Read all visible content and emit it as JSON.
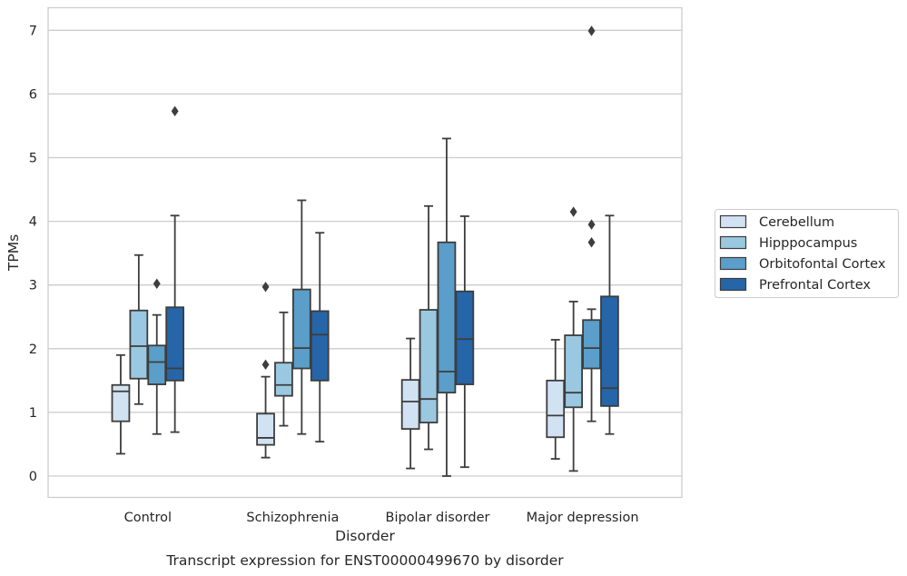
{
  "chart_data": {
    "type": "box",
    "title": "",
    "caption": "Transcript expression for ENST00000499670 by disorder",
    "xlabel": "Disorder",
    "ylabel": "TPMs",
    "ylim": [
      -0.33,
      7.35
    ],
    "yticks": [
      "0",
      "1",
      "2",
      "3",
      "4",
      "5",
      "6",
      "7"
    ],
    "grid": "horizontal",
    "legend_position": "right",
    "categories": [
      "Control",
      "Schizophrenia",
      "Bipolar disorder",
      "Major depression"
    ],
    "series": [
      {
        "name": "Cerebellum",
        "color": "#d1e2f2",
        "boxes": [
          {
            "whislo": 0.35,
            "q1": 0.86,
            "med": 1.33,
            "q3": 1.43,
            "whishi": 1.9,
            "fliers": []
          },
          {
            "whislo": 0.29,
            "q1": 0.49,
            "med": 0.6,
            "q3": 0.98,
            "whishi": 1.56,
            "fliers": [
              1.75,
              2.97
            ]
          },
          {
            "whislo": 0.12,
            "q1": 0.74,
            "med": 1.17,
            "q3": 1.51,
            "whishi": 2.16,
            "fliers": []
          },
          {
            "whislo": 0.27,
            "q1": 0.61,
            "med": 0.95,
            "q3": 1.5,
            "whishi": 2.14,
            "fliers": []
          }
        ]
      },
      {
        "name": "Hipppocampus",
        "color": "#9ac8e0",
        "boxes": [
          {
            "whislo": 1.13,
            "q1": 1.53,
            "med": 2.04,
            "q3": 2.6,
            "whishi": 3.47,
            "fliers": []
          },
          {
            "whislo": 0.79,
            "q1": 1.26,
            "med": 1.43,
            "q3": 1.78,
            "whishi": 2.57,
            "fliers": []
          },
          {
            "whislo": 0.42,
            "q1": 0.84,
            "med": 1.21,
            "q3": 2.61,
            "whishi": 4.24,
            "fliers": []
          },
          {
            "whislo": 0.08,
            "q1": 1.08,
            "med": 1.31,
            "q3": 2.21,
            "whishi": 2.74,
            "fliers": [
              4.15
            ]
          }
        ]
      },
      {
        "name": "Orbitofontal Cortex",
        "color": "#5a9ec9",
        "boxes": [
          {
            "whislo": 0.66,
            "q1": 1.44,
            "med": 1.79,
            "q3": 2.05,
            "whishi": 2.53,
            "fliers": [
              3.02
            ]
          },
          {
            "whislo": 0.66,
            "q1": 1.69,
            "med": 2.01,
            "q3": 2.93,
            "whishi": 4.33,
            "fliers": []
          },
          {
            "whislo": 0.0,
            "q1": 1.31,
            "med": 1.64,
            "q3": 3.67,
            "whishi": 5.3,
            "fliers": []
          },
          {
            "whislo": 0.86,
            "q1": 1.69,
            "med": 2.01,
            "q3": 2.45,
            "whishi": 2.62,
            "fliers": [
              3.67,
              3.95,
              6.99
            ]
          }
        ]
      },
      {
        "name": "Prefrontal Cortex",
        "color": "#2565a8",
        "boxes": [
          {
            "whislo": 0.69,
            "q1": 1.5,
            "med": 1.69,
            "q3": 2.65,
            "whishi": 4.09,
            "fliers": [
              5.73
            ]
          },
          {
            "whislo": 0.54,
            "q1": 1.5,
            "med": 2.22,
            "q3": 2.59,
            "whishi": 3.82,
            "fliers": []
          },
          {
            "whislo": 0.14,
            "q1": 1.44,
            "med": 2.15,
            "q3": 2.9,
            "whishi": 4.08,
            "fliers": []
          },
          {
            "whislo": 0.66,
            "q1": 1.1,
            "med": 1.38,
            "q3": 2.82,
            "whishi": 4.09,
            "fliers": []
          }
        ]
      }
    ]
  }
}
